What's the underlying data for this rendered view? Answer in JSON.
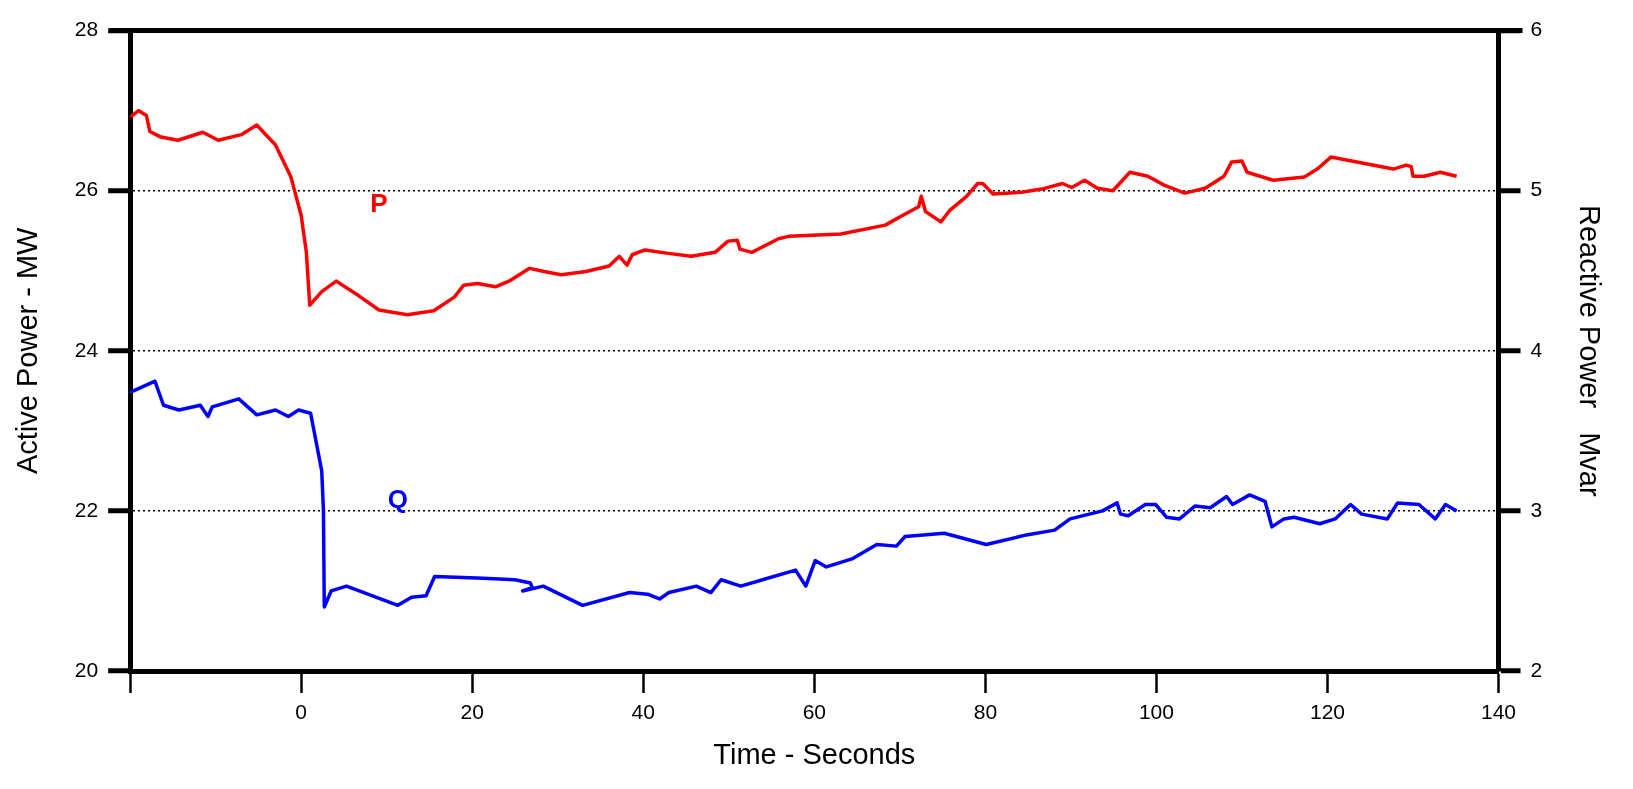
{
  "chart_data": {
    "type": "line",
    "xlabel": "Time - Seconds",
    "ylabel": "Active Power - MW",
    "y2label": "Reactive Power   Mvar",
    "xlim": [
      -20,
      140
    ],
    "xticks": [
      {
        "value": -20,
        "label": null
      },
      0,
      20,
      40,
      60,
      80,
      100,
      120,
      140
    ],
    "ylim": [
      20,
      28
    ],
    "yticks": [
      20,
      22,
      24,
      26,
      28
    ],
    "y2lim": [
      2,
      6
    ],
    "y2ticks": [
      2,
      3,
      4,
      5,
      6
    ],
    "grid": "y",
    "legend": false,
    "marker": "none",
    "line_style": "solid",
    "series": [
      {
        "name": "P",
        "color": "#ff0000",
        "axis": "y",
        "x": [
          -20,
          -19,
          -18.1,
          -17.7,
          -16.4,
          -14.4,
          -11.5,
          -9.7,
          -7,
          -5.2,
          -3,
          -1.2,
          0,
          0.6,
          1,
          2.4,
          4.1,
          6.7,
          9.1,
          12.4,
          15.5,
          17.9,
          19,
          20.6,
          22.7,
          24.3,
          26.7,
          28.4,
          30.4,
          33.3,
          36,
          37.2,
          38.1,
          38.7,
          40.2,
          42.7,
          45.6,
          48.4,
          49.9,
          51,
          51.3,
          52.7,
          55.8,
          57,
          63.1,
          68.3,
          70.3,
          72.2,
          72.5,
          73,
          74.8,
          75.8,
          77.8,
          79.1,
          79.7,
          80.9,
          84.2,
          86.6,
          89,
          90.1,
          91.6,
          93.1,
          94.9,
          96.9,
          99,
          100.9,
          103.3,
          105.7,
          107.9,
          108.8,
          110,
          110.6,
          113.7,
          117.3,
          118.8,
          120.4,
          127.7,
          129.2,
          129.8,
          130,
          131.3,
          133.2,
          135.1
        ],
        "values": [
          26.92,
          27,
          26.94,
          26.74,
          26.67,
          26.63,
          26.73,
          26.63,
          26.7,
          26.82,
          26.57,
          26.17,
          25.69,
          25.23,
          24.57,
          24.74,
          24.87,
          24.69,
          24.51,
          24.45,
          24.5,
          24.67,
          24.82,
          24.84,
          24.8,
          24.87,
          25.03,
          24.99,
          24.95,
          24.99,
          25.06,
          25.18,
          25.07,
          25.2,
          25.26,
          25.22,
          25.18,
          25.23,
          25.37,
          25.38,
          25.27,
          25.23,
          25.4,
          25.43,
          25.46,
          25.57,
          25.69,
          25.8,
          25.93,
          25.74,
          25.61,
          25.75,
          25.93,
          26.09,
          26.09,
          25.96,
          25.98,
          26.02,
          26.09,
          26.04,
          26.13,
          26.03,
          26,
          26.23,
          26.18,
          26.07,
          25.97,
          26.03,
          26.18,
          26.36,
          26.37,
          26.23,
          26.13,
          26.17,
          26.27,
          26.42,
          26.27,
          26.32,
          26.3,
          26.18,
          26.18,
          26.23,
          26.18
        ]
      },
      {
        "name": "Q",
        "color": "#0000ff",
        "axis": "y2",
        "x": [
          -20,
          -17.1,
          -16.1,
          -14.3,
          -11.8,
          -10.9,
          -10.4,
          -7.3,
          -5.2,
          -3,
          -1.5,
          -0.3,
          1.1,
          2.4,
          2.6,
          2.7,
          3.5,
          5.3,
          11.3,
          12.9,
          14.6,
          15.6,
          21.3,
          25,
          26.8,
          27,
          25.9,
          28.3,
          32.9,
          38.4,
          40.5,
          41.9,
          43,
          46.2,
          47.9,
          49.1,
          51.4,
          57.8,
          59,
          60.1,
          61.4,
          64.4,
          67.3,
          69.6,
          70.6,
          75.2,
          80.1,
          84.8,
          88.1,
          89.9,
          93.7,
          95.4,
          95.8,
          96.7,
          98.7,
          99.9,
          101.2,
          102.7,
          104.5,
          106.3,
          108.2,
          108.9,
          110.9,
          112.7,
          113.5,
          114.9,
          116.1,
          119.1,
          120.9,
          122.7,
          124,
          127,
          128.2,
          130.7,
          132.6,
          133.8,
          135.1
        ],
        "values": [
          3.74,
          3.81,
          3.66,
          3.63,
          3.66,
          3.59,
          3.65,
          3.7,
          3.6,
          3.63,
          3.59,
          3.63,
          3.61,
          3.25,
          3,
          2.4,
          2.5,
          2.53,
          2.41,
          2.46,
          2.47,
          2.59,
          2.58,
          2.57,
          2.55,
          2.52,
          2.5,
          2.53,
          2.41,
          2.49,
          2.48,
          2.45,
          2.49,
          2.53,
          2.49,
          2.57,
          2.53,
          2.63,
          2.53,
          2.69,
          2.65,
          2.7,
          2.79,
          2.78,
          2.84,
          2.86,
          2.79,
          2.85,
          2.88,
          2.95,
          3,
          3.05,
          2.98,
          2.97,
          3.04,
          3.04,
          2.96,
          2.95,
          3.03,
          3.02,
          3.09,
          3.04,
          3.1,
          3.06,
          2.9,
          2.95,
          2.96,
          2.92,
          2.95,
          3.04,
          2.98,
          2.95,
          3.05,
          3.04,
          2.95,
          3.04,
          3
        ]
      }
    ]
  }
}
